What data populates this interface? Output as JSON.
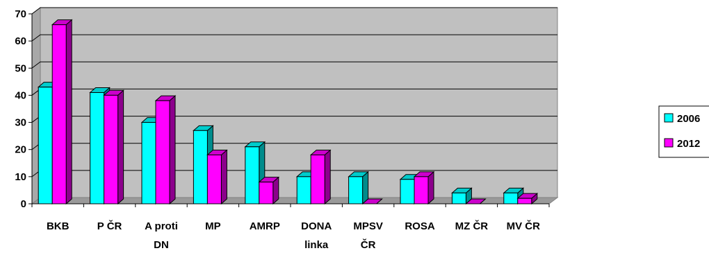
{
  "chart_data": {
    "type": "bar",
    "title": "",
    "xlabel": "",
    "ylabel": "",
    "categories": [
      [
        "BKB"
      ],
      [
        "P ČR"
      ],
      [
        "A proti",
        "DN"
      ],
      [
        "MP"
      ],
      [
        "AMRP"
      ],
      [
        "DONA",
        "linka"
      ],
      [
        "MPSV",
        "ČR"
      ],
      [
        "ROSA"
      ],
      [
        "MZ ČR"
      ],
      [
        "MV ČR"
      ]
    ],
    "series": [
      {
        "name": "2006",
        "values": [
          43,
          41,
          30,
          27,
          21,
          10,
          10,
          9,
          4,
          4
        ]
      },
      {
        "name": "2012",
        "values": [
          66,
          40,
          38,
          18,
          8,
          18,
          0,
          10,
          0,
          2
        ]
      }
    ],
    "ylim": [
      0,
      70
    ],
    "yticks": [
      0,
      10,
      20,
      30,
      40,
      50,
      60,
      70
    ],
    "grid": true,
    "legend_position": "right",
    "colors": {
      "series": [
        "#00FFFF",
        "#FF00FF"
      ],
      "plot_background": "#C0C0C0"
    }
  }
}
